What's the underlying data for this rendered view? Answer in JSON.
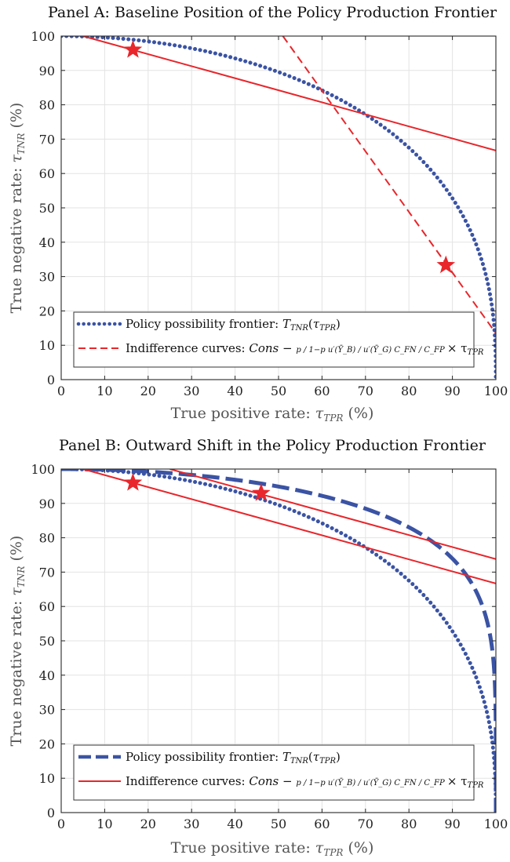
{
  "colors": {
    "blue": "#3a53a4",
    "red": "#e8262b",
    "grid": "#e3e3e3",
    "axis": "#262626"
  },
  "chart_data": [
    {
      "type": "line",
      "title": "Panel A: Baseline Position of the Policy Production Frontier",
      "xlabel": "True positive rate: τTPR (%)",
      "ylabel": "True negative rate: τTNR (%)",
      "xlabel_parts": {
        "pre": "True positive rate: ",
        "sym": "τ",
        "sub": "TPR",
        "post": " (%)"
      },
      "ylabel_parts": {
        "pre": "True negative rate: ",
        "sym": "τ",
        "sub": "TNR",
        "post": " (%)"
      },
      "xlim": [
        0,
        100
      ],
      "ylim": [
        0,
        100
      ],
      "xticks": [
        0,
        10,
        20,
        30,
        40,
        50,
        60,
        70,
        80,
        90,
        100
      ],
      "yticks": [
        0,
        10,
        20,
        30,
        40,
        50,
        60,
        70,
        80,
        90,
        100
      ],
      "grid": true,
      "legend": {
        "placement": "bottom-left",
        "entries": [
          {
            "pre": "Policy possibility frontier: ",
            "fn": "T",
            "fnsub": "TNR",
            "arg": "τ",
            "argsub": "TPR",
            "style": "dotted",
            "color": "blue"
          },
          {
            "pre": "Indifference curves: ",
            "cons": "Cons",
            "fracs": [
              "p / 1−p",
              "u′(Ȳ_B) / u′(Ȳ_G)",
              "C_FN / C_FP"
            ],
            "times": "× τ",
            "timessub": "TPR",
            "style": "dashed",
            "color": "red"
          }
        ]
      },
      "series": [
        {
          "name": "Policy possibility frontier",
          "kind": "frontier",
          "exponent": 2.6,
          "style": "dotted",
          "color": "blue",
          "width": 5
        },
        {
          "name": "Indifference curves",
          "kind": "line",
          "x": [
            5,
            100
          ],
          "y": [
            100,
            66.7
          ],
          "style": "solid",
          "color": "red",
          "width": 2
        },
        {
          "name": "Indifference curves",
          "kind": "line",
          "x": [
            51,
            100
          ],
          "y": [
            100,
            13.5
          ],
          "style": "dashed",
          "color": "red",
          "width": 2
        }
      ],
      "markers": [
        {
          "x": 16.5,
          "y": 96
        },
        {
          "x": 88.5,
          "y": 33.3
        }
      ]
    },
    {
      "type": "line",
      "title": "Panel B: Outward Shift in the Policy Production Frontier",
      "xlabel": "True positive rate: τTPR (%)",
      "ylabel": "True negative rate: τTNR (%)",
      "xlabel_parts": {
        "pre": "True positive rate: ",
        "sym": "τ",
        "sub": "TPR",
        "post": " (%)"
      },
      "ylabel_parts": {
        "pre": "True negative rate: ",
        "sym": "τ",
        "sub": "TNR",
        "post": " (%)"
      },
      "xlim": [
        0,
        100
      ],
      "ylim": [
        0,
        100
      ],
      "xticks": [
        0,
        10,
        20,
        30,
        40,
        50,
        60,
        70,
        80,
        90,
        100
      ],
      "yticks": [
        0,
        10,
        20,
        30,
        40,
        50,
        60,
        70,
        80,
        90,
        100
      ],
      "grid": true,
      "legend": {
        "placement": "bottom-left",
        "entries": [
          {
            "pre": "Policy possibility frontier: ",
            "fn": "T",
            "fnsub": "TNR",
            "arg": "τ",
            "argsub": "TPR",
            "style": "dashed",
            "color": "blue"
          },
          {
            "pre": "Indifference curves: ",
            "cons": "Cons",
            "fracs": [
              "p / 1−p",
              "u′(Ȳ_B) / u′(Ȳ_G)",
              "C_FN / C_FP"
            ],
            "times": "× τ",
            "timessub": "TPR",
            "style": "solid",
            "color": "red"
          }
        ]
      },
      "series": [
        {
          "name": "Policy possibility frontier",
          "kind": "frontier",
          "exponent": 2.6,
          "style": "dotted",
          "color": "blue",
          "width": 5
        },
        {
          "name": "Policy possibility frontier",
          "kind": "frontier",
          "exponent": 5.5,
          "style": "dashed",
          "color": "blue",
          "width": 5
        },
        {
          "name": "Indifference curves",
          "kind": "line",
          "x": [
            5,
            100
          ],
          "y": [
            100,
            66.7
          ],
          "style": "solid",
          "color": "red",
          "width": 2
        },
        {
          "name": "Indifference curves",
          "kind": "line",
          "x": [
            25,
            100
          ],
          "y": [
            100,
            73.8
          ],
          "style": "solid",
          "color": "red",
          "width": 2
        }
      ],
      "markers": [
        {
          "x": 16.5,
          "y": 96
        },
        {
          "x": 46,
          "y": 93
        }
      ]
    }
  ]
}
